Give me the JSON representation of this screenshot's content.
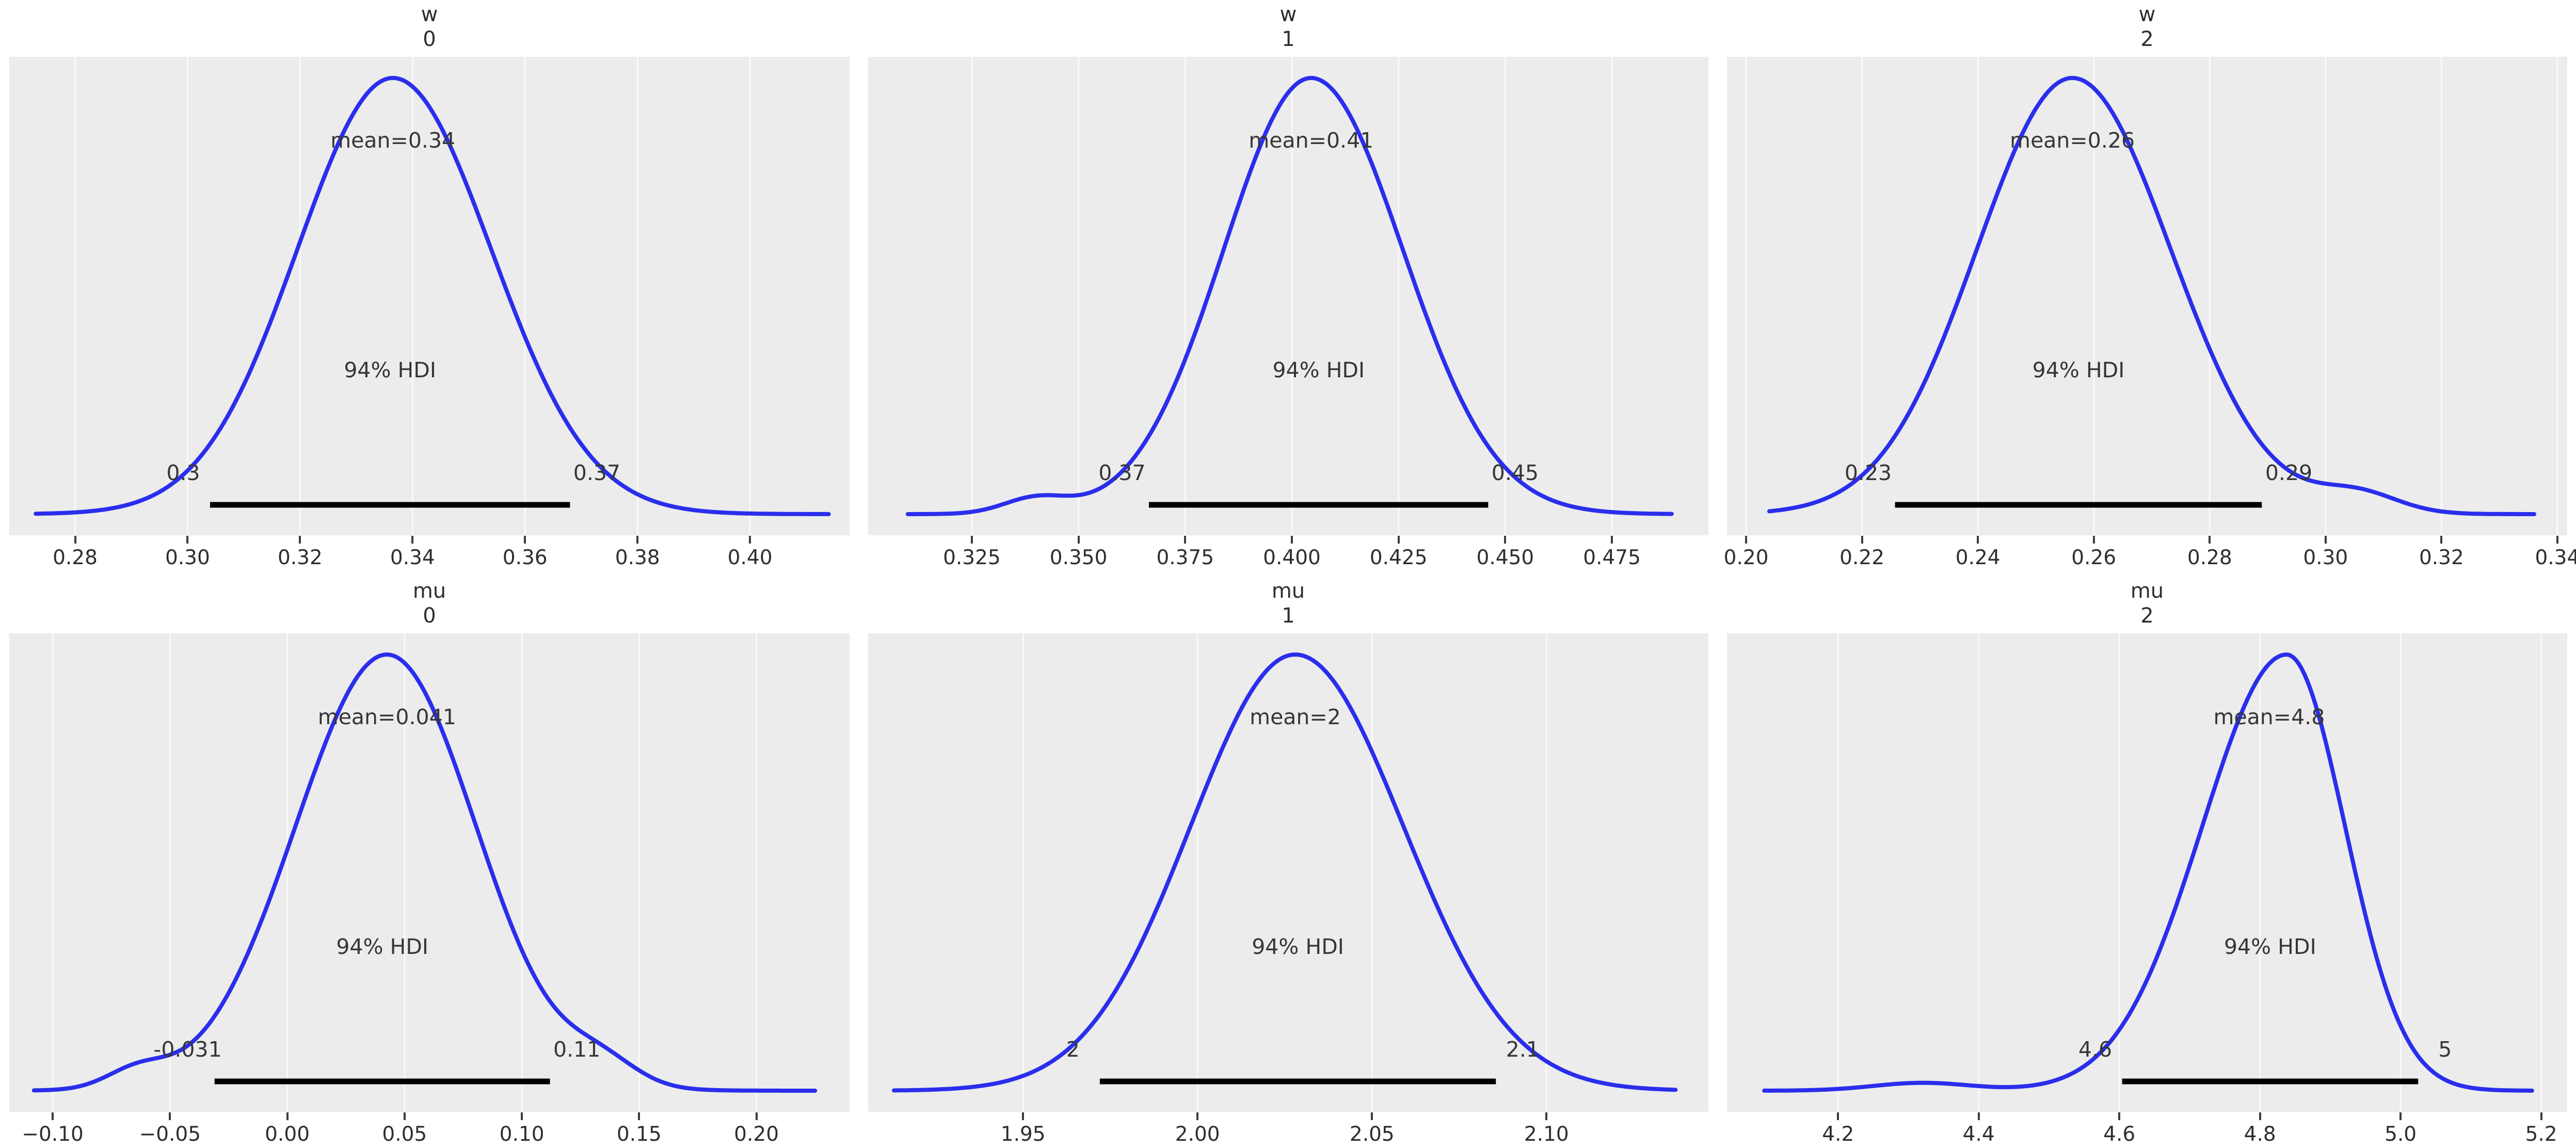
{
  "figure": {
    "background": "#ffffff",
    "panel_bg": "#ececec",
    "grid_color": "#fafafa",
    "curve_color": "#2a2eec",
    "hdi_line_color": "#000000",
    "text_color": "#363636",
    "rows": 2,
    "cols": 3
  },
  "chart_data": [
    {
      "type": "kde",
      "title_var": "w",
      "title_index": "0",
      "mean": 0.34,
      "mean_label": "mean=0.34",
      "mean_anchor": 0.3365,
      "hdi_prob": "94%",
      "hdi_text": "94% HDI",
      "hdi": [
        0.304,
        0.368
      ],
      "hdi_lo_label": "0.3",
      "hdi_hi_label": "0.37",
      "x_range": [
        0.2683,
        0.4177
      ],
      "ticks": [
        {
          "v": 0.28,
          "label": "0.28"
        },
        {
          "v": 0.3,
          "label": "0.30"
        },
        {
          "v": 0.32,
          "label": "0.32"
        },
        {
          "v": 0.34,
          "label": "0.34"
        },
        {
          "v": 0.36,
          "label": "0.36"
        },
        {
          "v": 0.38,
          "label": "0.38"
        },
        {
          "v": 0.4,
          "label": "0.40"
        }
      ],
      "curve": {
        "peak": 0.3365,
        "sd_left": 0.017,
        "sd_right": 0.0175,
        "x_start": 0.273,
        "x_end": 0.414,
        "bumps": []
      }
    },
    {
      "type": "kde",
      "title_var": "w",
      "title_index": "1",
      "mean": 0.41,
      "mean_label": "mean=0.41",
      "mean_anchor": 0.4045,
      "hdi_prob": "94%",
      "hdi_text": "94% HDI",
      "hdi": [
        0.3665,
        0.446
      ],
      "hdi_lo_label": "0.37",
      "hdi_hi_label": "0.45",
      "x_range": [
        0.3007,
        0.4976
      ],
      "ticks": [
        {
          "v": 0.325,
          "label": "0.325"
        },
        {
          "v": 0.35,
          "label": "0.350"
        },
        {
          "v": 0.375,
          "label": "0.375"
        },
        {
          "v": 0.4,
          "label": "0.400"
        },
        {
          "v": 0.425,
          "label": "0.425"
        },
        {
          "v": 0.45,
          "label": "0.450"
        },
        {
          "v": 0.475,
          "label": "0.475"
        }
      ],
      "curve": {
        "peak": 0.4045,
        "sd_left": 0.0205,
        "sd_right": 0.0215,
        "x_start": 0.31,
        "x_end": 0.489,
        "bumps": [
          {
            "x": 0.34,
            "sd": 0.0075,
            "h": 0.035
          }
        ]
      }
    },
    {
      "type": "kde",
      "title_var": "w",
      "title_index": "2",
      "mean": 0.26,
      "mean_label": "mean=0.26",
      "mean_anchor": 0.2563,
      "hdi_prob": "94%",
      "hdi_text": "94% HDI",
      "hdi": [
        0.2257,
        0.289
      ],
      "hdi_lo_label": "0.23",
      "hdi_hi_label": "0.29",
      "x_range": [
        0.1967,
        0.3417
      ],
      "ticks": [
        {
          "v": 0.2,
          "label": "0.20"
        },
        {
          "v": 0.22,
          "label": "0.22"
        },
        {
          "v": 0.24,
          "label": "0.24"
        },
        {
          "v": 0.26,
          "label": "0.26"
        },
        {
          "v": 0.28,
          "label": "0.28"
        },
        {
          "v": 0.3,
          "label": "0.30"
        },
        {
          "v": 0.32,
          "label": "0.32"
        },
        {
          "v": 0.34,
          "label": "0.34"
        }
      ],
      "curve": {
        "peak": 0.2563,
        "sd_left": 0.0165,
        "sd_right": 0.017,
        "x_start": 0.204,
        "x_end": 0.336,
        "bumps": [
          {
            "x": 0.3055,
            "sd": 0.007,
            "h": 0.045
          }
        ]
      }
    },
    {
      "type": "kde",
      "title_var": "mu",
      "title_index": "0",
      "mean": 0.041,
      "mean_label": "mean=0.041",
      "mean_anchor": 0.0425,
      "hdi_prob": "94%",
      "hdi_text": "94% HDI",
      "hdi": [
        -0.031,
        0.112
      ],
      "hdi_lo_label": "-0.031",
      "hdi_hi_label": "0.11",
      "x_range": [
        -0.1185,
        0.2397
      ],
      "ticks": [
        {
          "v": -0.1,
          "label": "−0.10"
        },
        {
          "v": -0.05,
          "label": "−0.05"
        },
        {
          "v": 0.0,
          "label": "0.00"
        },
        {
          "v": 0.05,
          "label": "0.05"
        },
        {
          "v": 0.1,
          "label": "0.10"
        },
        {
          "v": 0.15,
          "label": "0.15"
        },
        {
          "v": 0.2,
          "label": "0.20"
        }
      ],
      "curve": {
        "peak": 0.0425,
        "sd_left": 0.039,
        "sd_right": 0.038,
        "x_start": -0.108,
        "x_end": 0.225,
        "bumps": [
          {
            "x": -0.064,
            "sd": 0.013,
            "h": 0.04
          },
          {
            "x": 0.134,
            "sd": 0.015,
            "h": 0.05
          }
        ]
      }
    },
    {
      "type": "kde",
      "title_var": "mu",
      "title_index": "1",
      "mean": 2,
      "mean_label": "mean=2",
      "mean_anchor": 2.028,
      "hdi_prob": "94%",
      "hdi_text": "94% HDI",
      "hdi": [
        1.972,
        2.0855
      ],
      "hdi_lo_label": "2",
      "hdi_hi_label": "2.1",
      "x_range": [
        1.9056,
        2.1464
      ],
      "ticks": [
        {
          "v": 1.95,
          "label": "1.95"
        },
        {
          "v": 2.0,
          "label": "2.00"
        },
        {
          "v": 2.05,
          "label": "2.05"
        },
        {
          "v": 2.1,
          "label": "2.10"
        }
      ],
      "curve": {
        "peak": 2.028,
        "sd_left": 0.03,
        "sd_right": 0.031,
        "x_start": 1.913,
        "x_end": 2.137,
        "bumps": []
      }
    },
    {
      "type": "kde",
      "title_var": "mu",
      "title_index": "2",
      "mean": 4.8,
      "mean_label": "mean=4.8",
      "mean_anchor": 4.813,
      "hdi_prob": "94%",
      "hdi_text": "94% HDI",
      "hdi": [
        4.604,
        5.025
      ],
      "hdi_lo_label": "4.6",
      "hdi_hi_label": "5",
      "x_range": [
        4.042,
        5.237
      ],
      "ticks": [
        {
          "v": 4.2,
          "label": "4.2"
        },
        {
          "v": 4.4,
          "label": "4.4"
        },
        {
          "v": 4.6,
          "label": "4.6"
        },
        {
          "v": 4.8,
          "label": "4.8"
        },
        {
          "v": 5.0,
          "label": "5.0"
        },
        {
          "v": 5.2,
          "label": "5.2"
        }
      ],
      "curve": {
        "peak": 4.838,
        "sd_left": 0.12,
        "sd_right": 0.083,
        "x_start": 4.095,
        "x_end": 5.187,
        "bumps": [
          {
            "x": 4.32,
            "sd": 0.07,
            "h": 0.018
          }
        ]
      }
    }
  ]
}
